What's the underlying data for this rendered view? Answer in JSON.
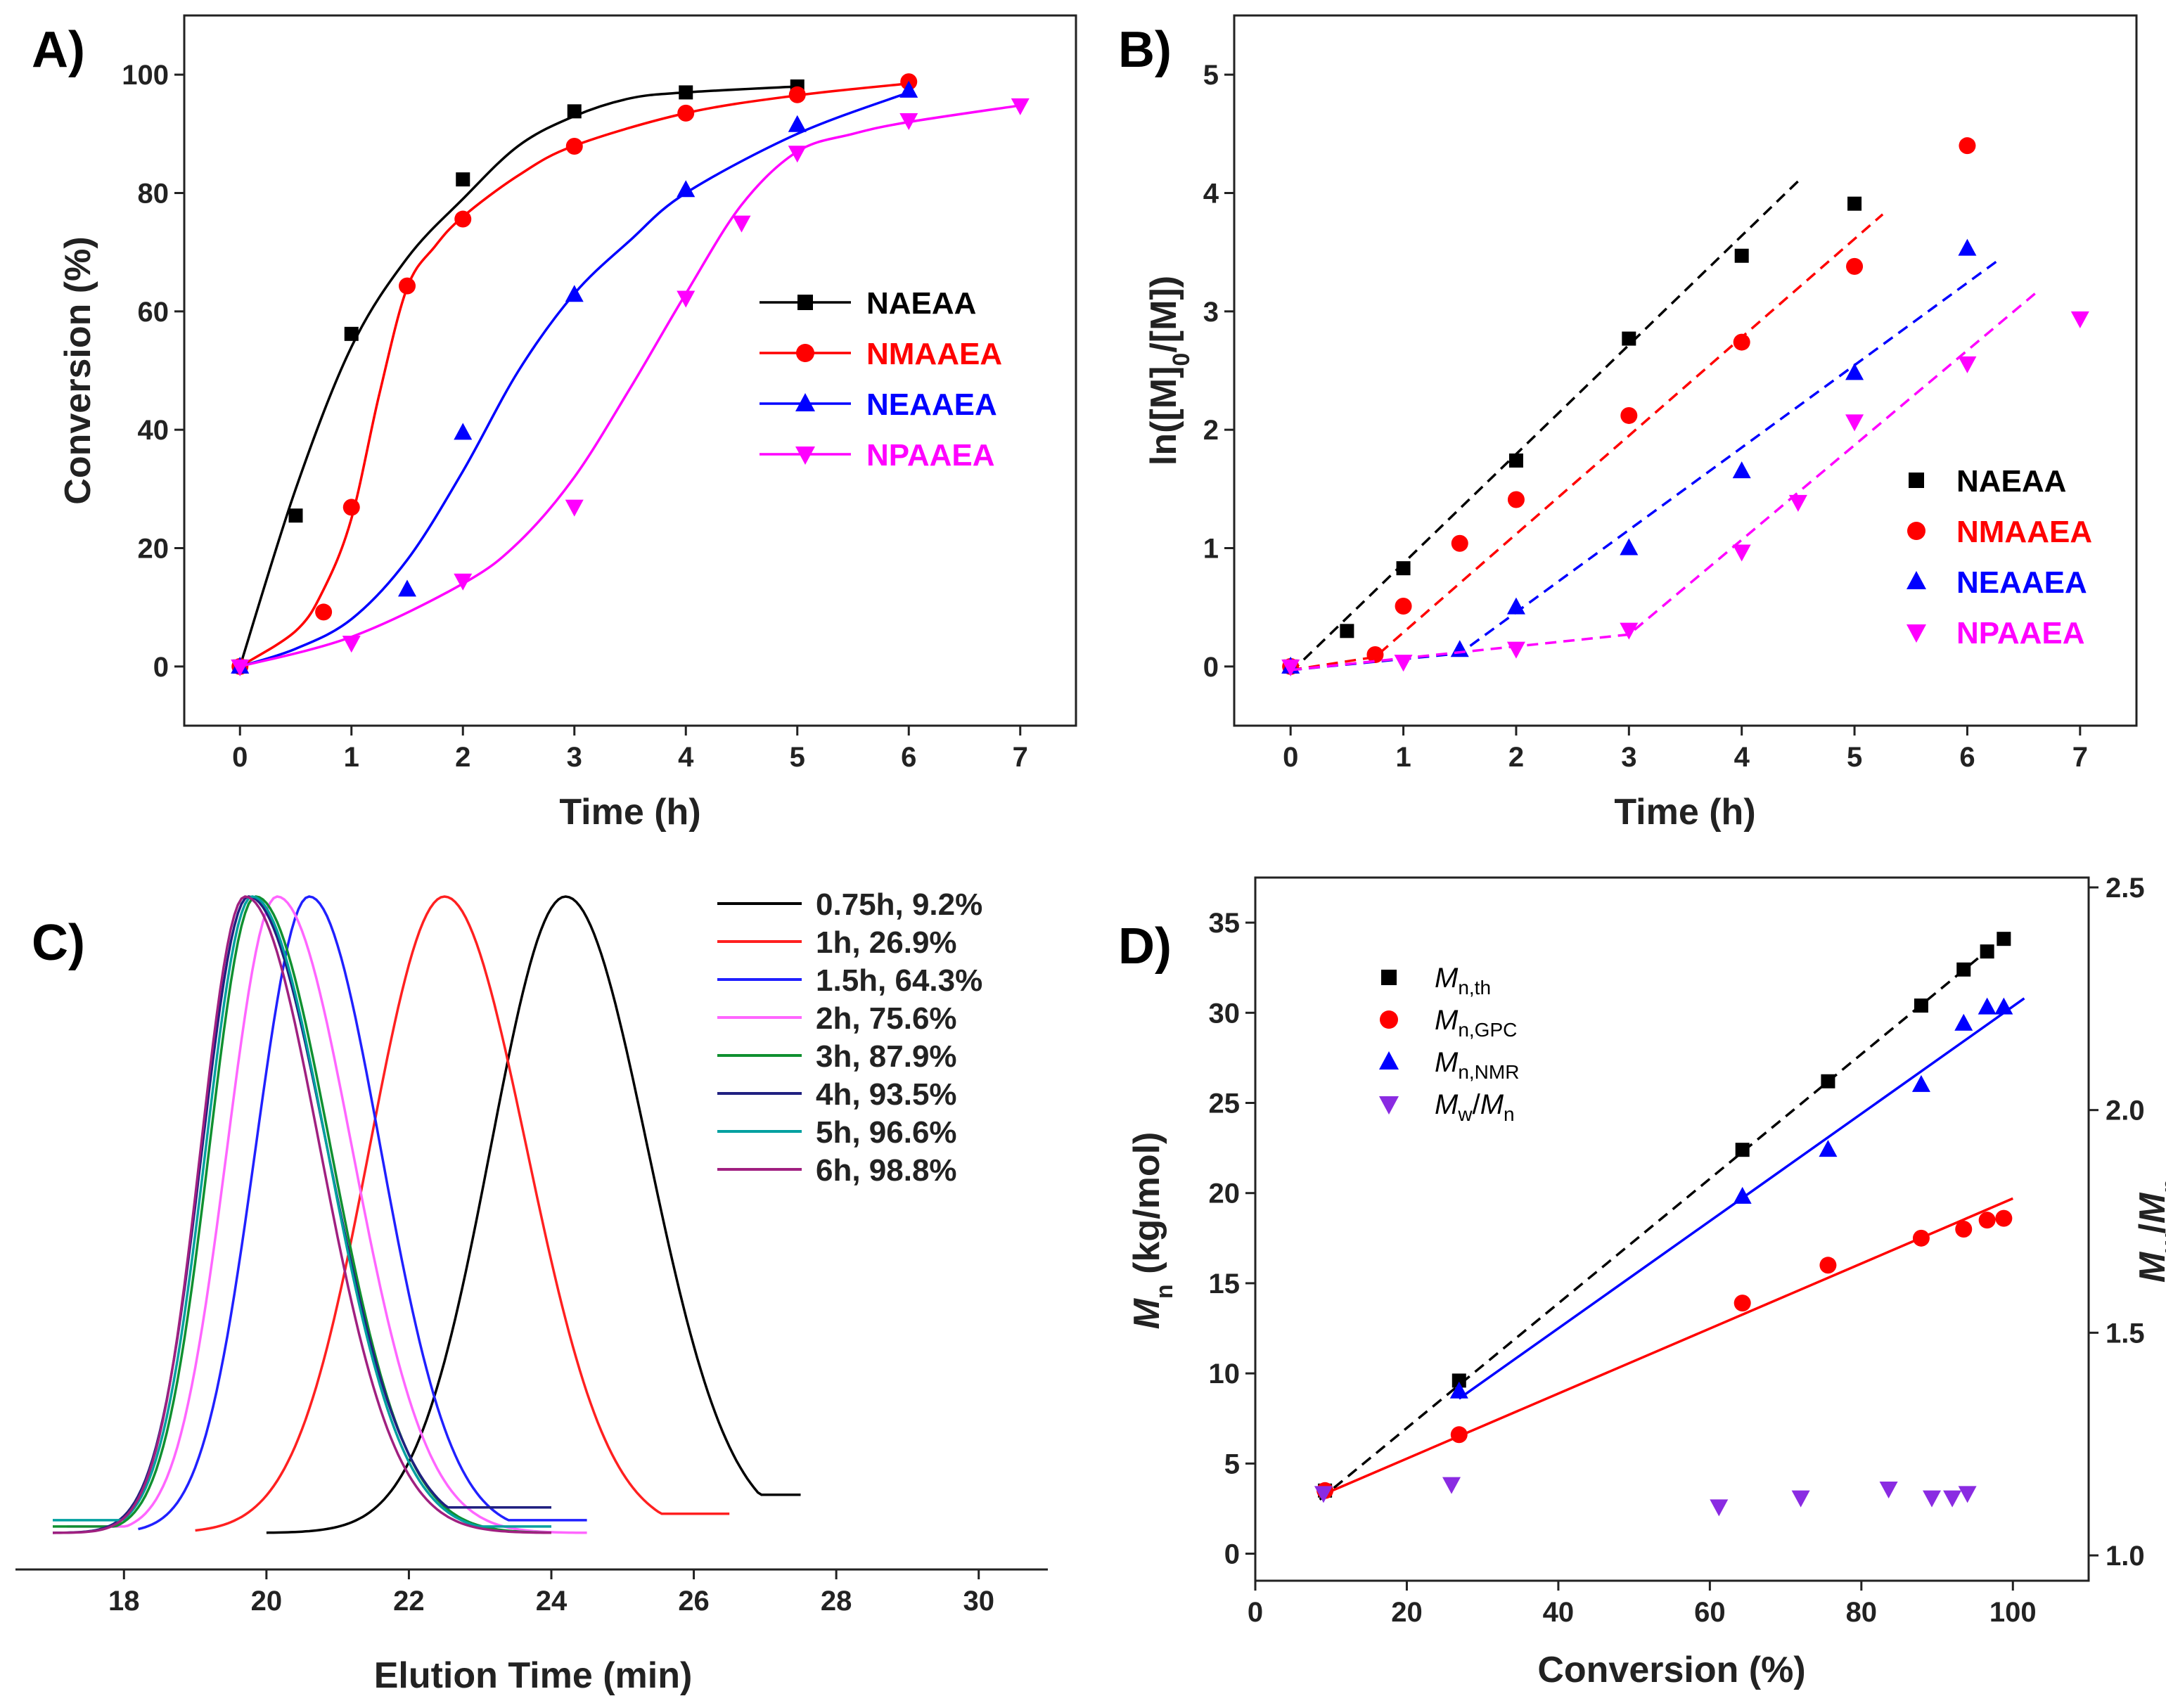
{
  "colors": {
    "NAEAA": "#000000",
    "NMAAEA": "#ff0000",
    "NEAAEA": "#0000ff",
    "NPAAEA": "#ff00ff",
    "c075": "#000000",
    "c1": "#ff2020",
    "c15": "#2020ff",
    "c2": "#ff66ff",
    "c3": "#109030",
    "c4": "#202080",
    "c5": "#00a0a0",
    "c6": "#a02080",
    "mw": "#8a2be2"
  },
  "chart_data": [
    {
      "id": "A",
      "panel_label": "A)",
      "type": "scatter",
      "xlabel": "Time (h)",
      "ylabel": "Conversion (%)",
      "xlim": [
        -0.5,
        7.5
      ],
      "ylim": [
        -10,
        110
      ],
      "xticks": [
        0,
        1,
        2,
        3,
        4,
        5,
        6,
        7
      ],
      "yticks": [
        0,
        20,
        40,
        60,
        80,
        100
      ],
      "legend_pos": "middle-right",
      "series": [
        {
          "name": "NAEAA",
          "color": "NAEAA",
          "marker": "square",
          "x": [
            0,
            0.5,
            1,
            2,
            3,
            4,
            5
          ],
          "y": [
            0,
            25.5,
            56.2,
            82.3,
            93.8,
            97.0,
            98.0
          ],
          "fit_x": [
            0,
            0.5,
            1,
            1.5,
            2,
            2.5,
            3,
            3.5,
            4,
            5
          ],
          "fit_y": [
            0,
            30,
            54,
            69,
            79,
            88,
            93,
            96,
            97,
            98
          ]
        },
        {
          "name": "NMAAEA",
          "color": "NMAAEA",
          "marker": "circle",
          "x": [
            0,
            0.75,
            1,
            1.5,
            2,
            3,
            4,
            5,
            6
          ],
          "y": [
            0,
            9.2,
            26.9,
            64.3,
            75.6,
            87.9,
            93.5,
            96.6,
            98.8
          ],
          "fit_x": [
            0,
            0.5,
            0.75,
            1,
            1.25,
            1.5,
            1.75,
            2,
            2.5,
            3,
            4,
            5,
            6
          ],
          "fit_y": [
            0,
            6,
            13,
            25,
            46,
            64,
            71,
            76,
            83,
            88,
            93.5,
            96.5,
            98.5
          ]
        },
        {
          "name": "NEAAEA",
          "color": "NEAAEA",
          "marker": "triangle",
          "x": [
            0,
            1.5,
            2,
            3,
            4,
            5,
            6
          ],
          "y": [
            0,
            13,
            39.5,
            62.8,
            80.5,
            91.5,
            97.3
          ],
          "fit_x": [
            0,
            0.5,
            1,
            1.5,
            2,
            2.5,
            3,
            3.5,
            4,
            5,
            6
          ],
          "fit_y": [
            0,
            3,
            8,
            18,
            33,
            50,
            63,
            72,
            80,
            90,
            97
          ]
        },
        {
          "name": "NPAAEA",
          "color": "NPAAEA",
          "marker": "tri-down",
          "x": [
            0,
            1,
            2,
            3,
            4,
            4.5,
            5,
            6,
            7
          ],
          "y": [
            0,
            4,
            14.5,
            27,
            62.3,
            75,
            86.8,
            92.3,
            94.8
          ],
          "fit_x": [
            0,
            1,
            2,
            2.5,
            3,
            3.5,
            4,
            4.5,
            5,
            5.5,
            6,
            7
          ],
          "fit_y": [
            0,
            5,
            14,
            21,
            32,
            47,
            63,
            78,
            87,
            90,
            92,
            94.8
          ]
        }
      ]
    },
    {
      "id": "B",
      "panel_label": "B)",
      "type": "scatter",
      "xlabel": "Time (h)",
      "ylabel_main": "ln([M]",
      "ylabel_sub": "0",
      "ylabel_tail": "/[M])",
      "xlim": [
        -0.5,
        7.5
      ],
      "ylim": [
        -0.5,
        5.5
      ],
      "xticks": [
        0,
        1,
        2,
        3,
        4,
        5,
        6,
        7
      ],
      "yticks": [
        0,
        1,
        2,
        3,
        4,
        5
      ],
      "legend_pos": "lower-right",
      "series": [
        {
          "name": "NAEAA",
          "color": "NAEAA",
          "marker": "square",
          "x": [
            0,
            0.5,
            1,
            2,
            3,
            4,
            5
          ],
          "y": [
            0,
            0.3,
            0.83,
            1.74,
            2.77,
            3.47,
            3.91
          ],
          "fit_x": [
            0,
            4.5
          ],
          "fit_y": [
            -0.05,
            4.1
          ]
        },
        {
          "name": "NMAAEA",
          "color": "NMAAEA",
          "marker": "circle",
          "x": [
            0,
            0.75,
            1,
            1.5,
            2,
            3,
            4,
            5,
            6
          ],
          "y": [
            0,
            0.1,
            0.51,
            1.04,
            1.41,
            2.12,
            2.74,
            3.38,
            4.4
          ],
          "fit_x": [
            0,
            0.75,
            5.25
          ],
          "fit_y": [
            -0.03,
            0.08,
            3.82
          ]
        },
        {
          "name": "NEAAEA",
          "color": "NEAAEA",
          "marker": "triangle",
          "x": [
            0,
            1.5,
            2,
            3,
            4,
            5,
            6
          ],
          "y": [
            0,
            0.14,
            0.5,
            1.0,
            1.65,
            2.48,
            3.53
          ],
          "fit_x": [
            0,
            1.5,
            6.3
          ],
          "fit_y": [
            -0.03,
            0.11,
            3.45
          ]
        },
        {
          "name": "NPAAEA",
          "color": "NPAAEA",
          "marker": "tri-down",
          "x": [
            0,
            1,
            2,
            3,
            4,
            4.5,
            5,
            6,
            7
          ],
          "y": [
            0,
            0.04,
            0.15,
            0.31,
            0.97,
            1.39,
            2.07,
            2.56,
            2.94
          ],
          "fit_x": [
            0,
            3,
            6.6
          ],
          "fit_y": [
            -0.03,
            0.27,
            3.15
          ]
        }
      ]
    },
    {
      "id": "C",
      "panel_label": "C)",
      "type": "line",
      "xlabel": "Elution Time (min)",
      "xlim": [
        17,
        31
      ],
      "xticks": [
        18,
        20,
        22,
        24,
        26,
        28,
        30
      ],
      "legend_pos": "top-right",
      "series": [
        {
          "name": "0.75h, 9.2%",
          "color": "c075",
          "peak": 24.2,
          "sl": 1.05,
          "sr": 1.15,
          "start": 20.0,
          "end": 27.5,
          "base_l": 0.0,
          "base_r": 0.06
        },
        {
          "name": "1h, 26.9%",
          "color": "c1",
          "peak": 22.5,
          "sl": 1.05,
          "sr": 1.15,
          "start": 19.0,
          "end": 26.5,
          "base_l": 0.0,
          "base_r": 0.03
        },
        {
          "name": "1.5h, 64.3%",
          "color": "c15",
          "peak": 20.6,
          "sl": 0.75,
          "sr": 1.0,
          "start": 18.2,
          "end": 24.5,
          "base_l": 0.0,
          "base_r": 0.02
        },
        {
          "name": "2h, 75.6%",
          "color": "c2",
          "peak": 20.15,
          "sl": 0.7,
          "sr": 1.05,
          "start": 17.2,
          "end": 24.5,
          "base_l": 0.01,
          "base_r": 0.0
        },
        {
          "name": "3h, 87.9%",
          "color": "c3",
          "peak": 19.85,
          "sl": 0.65,
          "sr": 1.05,
          "start": 17.0,
          "end": 24.0,
          "base_l": 0.01,
          "base_r": 0.0
        },
        {
          "name": "4h, 93.5%",
          "color": "c4",
          "peak": 19.75,
          "sl": 0.65,
          "sr": 1.1,
          "start": 17.0,
          "end": 24.0,
          "base_l": 0.0,
          "base_r": 0.04
        },
        {
          "name": "5h, 96.6%",
          "color": "c5",
          "peak": 19.8,
          "sl": 0.65,
          "sr": 1.05,
          "start": 17.0,
          "end": 24.0,
          "base_l": 0.02,
          "base_r": 0.01
        },
        {
          "name": "6h, 98.8%",
          "color": "c6",
          "peak": 19.7,
          "sl": 0.62,
          "sr": 1.05,
          "start": 17.0,
          "end": 24.0,
          "base_l": 0.0,
          "base_r": 0.0
        }
      ]
    },
    {
      "id": "D",
      "panel_label": "D)",
      "type": "scatter",
      "xlabel": "Conversion (%)",
      "ylabel_italic": "M",
      "ylabel_sub": "n",
      "ylabel_tail": " (kg/mol)",
      "y2label_a": "M",
      "y2label_asub": "w",
      "y2label_mid": "/",
      "y2label_b": "M",
      "y2label_bsub": "n",
      "xlim": [
        0,
        110
      ],
      "ylim": [
        -1.5,
        37.5
      ],
      "y2lim": [
        1.0,
        2.5
      ],
      "xticks": [
        0,
        20,
        40,
        60,
        80,
        100
      ],
      "yticks": [
        0,
        5,
        10,
        15,
        20,
        25,
        30,
        35
      ],
      "y2ticks": [
        1.0,
        1.5,
        2.0,
        2.5
      ],
      "y2ticklabels": [
        "1.0",
        "1.5",
        "2.0",
        "2.5"
      ],
      "legend_pos": "top-left",
      "series": [
        {
          "name_main": "M",
          "name_sub": "n,th",
          "color": "NAEAA",
          "marker": "square",
          "axis": "y",
          "x": [
            9.2,
            26.9,
            64.3,
            75.6,
            87.9,
            93.5,
            96.6,
            98.8
          ],
          "y": [
            3.5,
            9.6,
            22.4,
            26.2,
            30.4,
            32.4,
            33.4,
            34.1
          ],
          "fit_x": [
            8.5,
            98.8
          ],
          "fit_y": [
            3.0,
            34.2
          ],
          "dashed": true
        },
        {
          "name_main": "M",
          "name_sub": "n,GPC",
          "color": "NMAAEA",
          "marker": "circle",
          "axis": "y",
          "x": [
            9.2,
            26.9,
            64.3,
            75.6,
            87.9,
            93.5,
            96.6,
            98.8
          ],
          "y": [
            3.5,
            6.6,
            13.9,
            16.0,
            17.5,
            18.0,
            18.5,
            18.6
          ],
          "fit_x": [
            8.5,
            100
          ],
          "fit_y": [
            3.2,
            19.7
          ],
          "dashed": false
        },
        {
          "name_main": "M",
          "name_sub": "n,NMR",
          "color": "NEAAEA",
          "marker": "triangle",
          "axis": "y",
          "x": [
            26.9,
            64.3,
            75.6,
            87.9,
            93.5,
            96.6,
            98.8
          ],
          "y": [
            9.0,
            19.8,
            22.4,
            26.0,
            29.4,
            30.3,
            30.3
          ],
          "fit_x": [
            26.9,
            101.5
          ],
          "fit_y": [
            8.6,
            30.8
          ],
          "dashed": false
        },
        {
          "name_main": "M",
          "name_sub": "w",
          "name_mid": "/",
          "name_main2": "M",
          "name_sub2": "n",
          "color": "mw",
          "marker": "tri-down",
          "axis": "y2",
          "x": [
            9.0,
            25.9,
            61.2,
            72.0,
            83.6,
            89.3,
            92.0,
            94.0
          ],
          "y": [
            1.14,
            1.16,
            1.11,
            1.13,
            1.15,
            1.13,
            1.13,
            1.14
          ]
        }
      ]
    }
  ]
}
